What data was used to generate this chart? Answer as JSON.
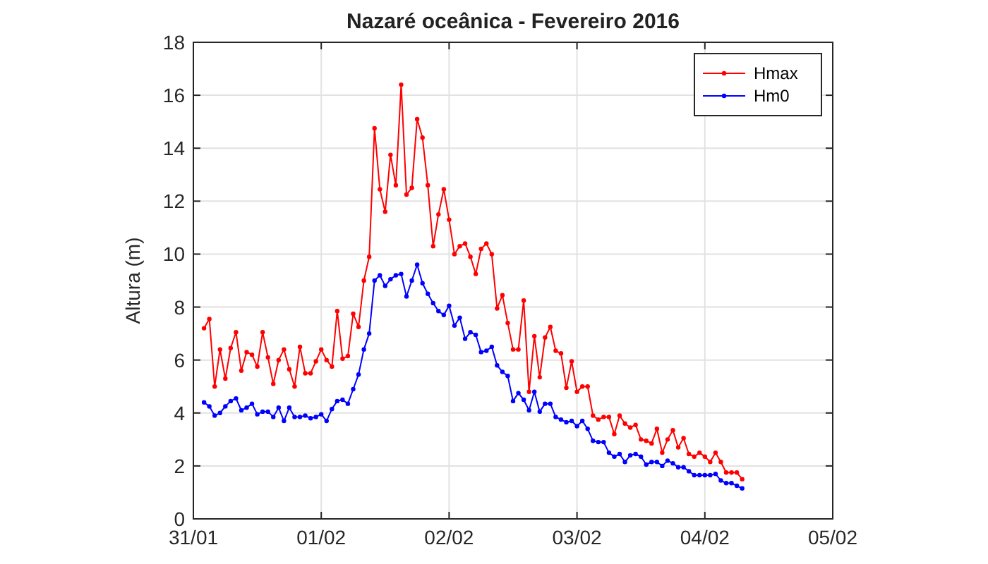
{
  "chart_data": {
    "type": "line",
    "title": "Nazaré oceânica - Fevereiro 2016",
    "ylabel": "Altura (m)",
    "x": [
      "2016-01-31T02:00",
      "2016-01-31T03:00",
      "2016-01-31T04:00",
      "2016-01-31T05:00",
      "2016-01-31T06:00",
      "2016-01-31T07:00",
      "2016-01-31T08:00",
      "2016-01-31T09:00",
      "2016-01-31T10:00",
      "2016-01-31T11:00",
      "2016-01-31T12:00",
      "2016-01-31T13:00",
      "2016-01-31T14:00",
      "2016-01-31T15:00",
      "2016-01-31T16:00",
      "2016-01-31T17:00",
      "2016-01-31T18:00",
      "2016-01-31T19:00",
      "2016-01-31T20:00",
      "2016-01-31T21:00",
      "2016-01-31T22:00",
      "2016-01-31T23:00",
      "2016-02-01T00:00",
      "2016-02-01T01:00",
      "2016-02-01T02:00",
      "2016-02-01T03:00",
      "2016-02-01T04:00",
      "2016-02-01T05:00",
      "2016-02-01T06:00",
      "2016-02-01T07:00",
      "2016-02-01T08:00",
      "2016-02-01T09:00",
      "2016-02-01T10:00",
      "2016-02-01T11:00",
      "2016-02-01T12:00",
      "2016-02-01T13:00",
      "2016-02-01T14:00",
      "2016-02-01T15:00",
      "2016-02-01T16:00",
      "2016-02-01T17:00",
      "2016-02-01T18:00",
      "2016-02-01T19:00",
      "2016-02-01T20:00",
      "2016-02-01T21:00",
      "2016-02-01T22:00",
      "2016-02-01T23:00",
      "2016-02-02T00:00",
      "2016-02-02T01:00",
      "2016-02-02T02:00",
      "2016-02-02T03:00",
      "2016-02-02T04:00",
      "2016-02-02T05:00",
      "2016-02-02T06:00",
      "2016-02-02T07:00",
      "2016-02-02T08:00",
      "2016-02-02T09:00",
      "2016-02-02T10:00",
      "2016-02-02T11:00",
      "2016-02-02T12:00",
      "2016-02-02T13:00",
      "2016-02-02T14:00",
      "2016-02-02T15:00",
      "2016-02-02T16:00",
      "2016-02-02T17:00",
      "2016-02-02T18:00",
      "2016-02-02T19:00",
      "2016-02-02T20:00",
      "2016-02-02T21:00",
      "2016-02-02T22:00",
      "2016-02-02T23:00",
      "2016-02-03T00:00",
      "2016-02-03T01:00",
      "2016-02-03T02:00",
      "2016-02-03T03:00",
      "2016-02-03T04:00",
      "2016-02-03T05:00",
      "2016-02-03T06:00",
      "2016-02-03T07:00",
      "2016-02-03T08:00",
      "2016-02-03T09:00",
      "2016-02-03T10:00",
      "2016-02-03T11:00",
      "2016-02-03T12:00",
      "2016-02-03T13:00",
      "2016-02-03T14:00",
      "2016-02-03T15:00",
      "2016-02-03T16:00",
      "2016-02-03T17:00",
      "2016-02-03T18:00",
      "2016-02-03T19:00",
      "2016-02-03T20:00",
      "2016-02-03T21:00",
      "2016-02-03T22:00",
      "2016-02-03T23:00",
      "2016-02-04T00:00",
      "2016-02-04T01:00",
      "2016-02-04T02:00",
      "2016-02-04T03:00",
      "2016-02-04T04:00",
      "2016-02-04T05:00",
      "2016-02-04T06:00",
      "2016-02-04T07:00"
    ],
    "series": [
      {
        "name": "Hmax",
        "color": "#ff0000",
        "values": [
          7.2,
          7.55,
          5.0,
          6.4,
          5.3,
          6.45,
          7.05,
          5.6,
          6.3,
          6.2,
          5.75,
          7.05,
          6.1,
          5.1,
          6.0,
          6.4,
          5.65,
          5.0,
          6.5,
          5.5,
          5.5,
          5.95,
          6.4,
          6.0,
          5.75,
          7.85,
          6.05,
          6.15,
          7.75,
          7.25,
          9.0,
          9.9,
          14.75,
          12.45,
          11.6,
          13.75,
          12.6,
          16.4,
          12.25,
          12.5,
          15.1,
          14.4,
          12.6,
          10.3,
          11.5,
          12.45,
          11.3,
          10.0,
          10.3,
          10.4,
          9.9,
          9.25,
          10.2,
          10.4,
          10.0,
          7.95,
          8.45,
          7.4,
          6.4,
          6.4,
          8.25,
          4.8,
          6.9,
          5.35,
          6.85,
          7.25,
          6.35,
          6.25,
          4.95,
          5.95,
          4.8,
          5.0,
          5.0,
          3.9,
          3.75,
          3.85,
          3.85,
          3.2,
          3.9,
          3.6,
          3.45,
          3.55,
          3.0,
          2.95,
          2.85,
          3.4,
          2.5,
          3.0,
          3.35,
          2.7,
          3.05,
          2.45,
          2.35,
          2.5,
          2.35,
          2.15,
          2.5,
          2.15,
          1.75,
          1.75,
          1.75,
          1.5
        ]
      },
      {
        "name": "Hm0",
        "color": "#0000ff",
        "values": [
          4.4,
          4.25,
          3.9,
          4.0,
          4.25,
          4.45,
          4.55,
          4.1,
          4.2,
          4.35,
          3.95,
          4.05,
          4.05,
          3.85,
          4.2,
          3.7,
          4.2,
          3.85,
          3.85,
          3.9,
          3.8,
          3.85,
          3.95,
          3.7,
          4.15,
          4.45,
          4.5,
          4.35,
          4.9,
          5.45,
          6.4,
          7.0,
          9.0,
          9.2,
          8.8,
          9.05,
          9.2,
          9.25,
          8.4,
          9.0,
          9.6,
          8.9,
          8.5,
          8.15,
          7.85,
          7.7,
          8.05,
          7.3,
          7.6,
          6.8,
          7.05,
          6.95,
          6.3,
          6.35,
          6.5,
          5.8,
          5.55,
          5.4,
          4.45,
          4.75,
          4.5,
          4.1,
          4.8,
          4.05,
          4.35,
          4.35,
          3.85,
          3.75,
          3.65,
          3.7,
          3.5,
          3.7,
          3.4,
          2.95,
          2.9,
          2.9,
          2.5,
          2.35,
          2.45,
          2.15,
          2.4,
          2.45,
          2.35,
          2.05,
          2.15,
          2.15,
          2.0,
          2.2,
          2.1,
          1.95,
          1.95,
          1.8,
          1.65,
          1.65,
          1.65,
          1.65,
          1.7,
          1.45,
          1.35,
          1.35,
          1.25,
          1.15
        ]
      }
    ],
    "xlim": [
      "2016-01-31",
      "2016-02-05"
    ],
    "xticks": [
      {
        "value": "2016-01-31",
        "label": "31/01"
      },
      {
        "value": "2016-02-01",
        "label": "01/02"
      },
      {
        "value": "2016-02-02",
        "label": "02/02"
      },
      {
        "value": "2016-02-03",
        "label": "03/02"
      },
      {
        "value": "2016-02-04",
        "label": "04/02"
      },
      {
        "value": "2016-02-05",
        "label": "05/02"
      }
    ],
    "ylim": [
      0,
      18
    ],
    "yticks": [
      0,
      2,
      4,
      6,
      8,
      10,
      12,
      14,
      16,
      18
    ],
    "grid": true,
    "legend": "top right",
    "marker": "circle",
    "line_style": "solid"
  }
}
